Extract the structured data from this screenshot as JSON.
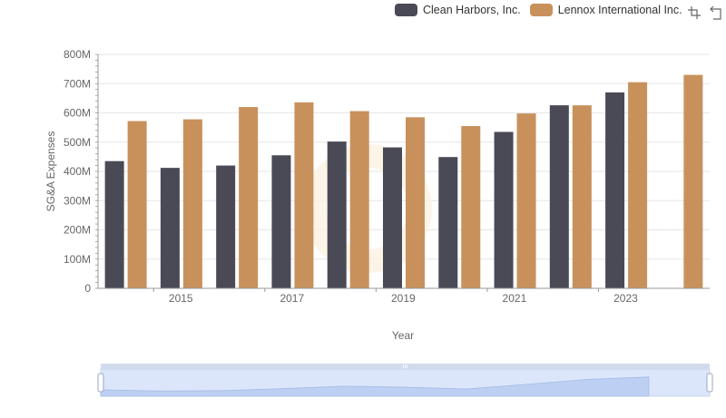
{
  "toolbox": {
    "icons": [
      "zoom-icon",
      "restore-icon"
    ]
  },
  "chart_data": {
    "type": "bar",
    "title": "",
    "xlabel": "Year",
    "ylabel": "SG&A Expenses",
    "categories": [
      "2014",
      "2015",
      "2016",
      "2017",
      "2018",
      "2019",
      "2020",
      "2021",
      "2022",
      "2023",
      "2024"
    ],
    "x_tick_labels": [
      "2015",
      "2017",
      "2019",
      "2021",
      "2023"
    ],
    "y_tick_labels": [
      "0",
      "100M",
      "200M",
      "300M",
      "400M",
      "500M",
      "600M",
      "700M",
      "800M"
    ],
    "ylim": [
      0,
      800000000
    ],
    "series": [
      {
        "name": "Clean Harbors, Inc.",
        "color": "#4a4a56",
        "values": [
          435000000,
          412000000,
          420000000,
          455000000,
          502000000,
          482000000,
          449000000,
          535000000,
          626000000,
          670000000,
          null
        ]
      },
      {
        "name": "Lennox International Inc.",
        "color": "#c8915c",
        "values": [
          572000000,
          578000000,
          620000000,
          636000000,
          606000000,
          585000000,
          555000000,
          598000000,
          626000000,
          705000000,
          730000000
        ]
      }
    ],
    "grid": true,
    "legend_position": "top-right",
    "datazoom": {
      "range_percent": [
        0,
        100
      ]
    }
  }
}
